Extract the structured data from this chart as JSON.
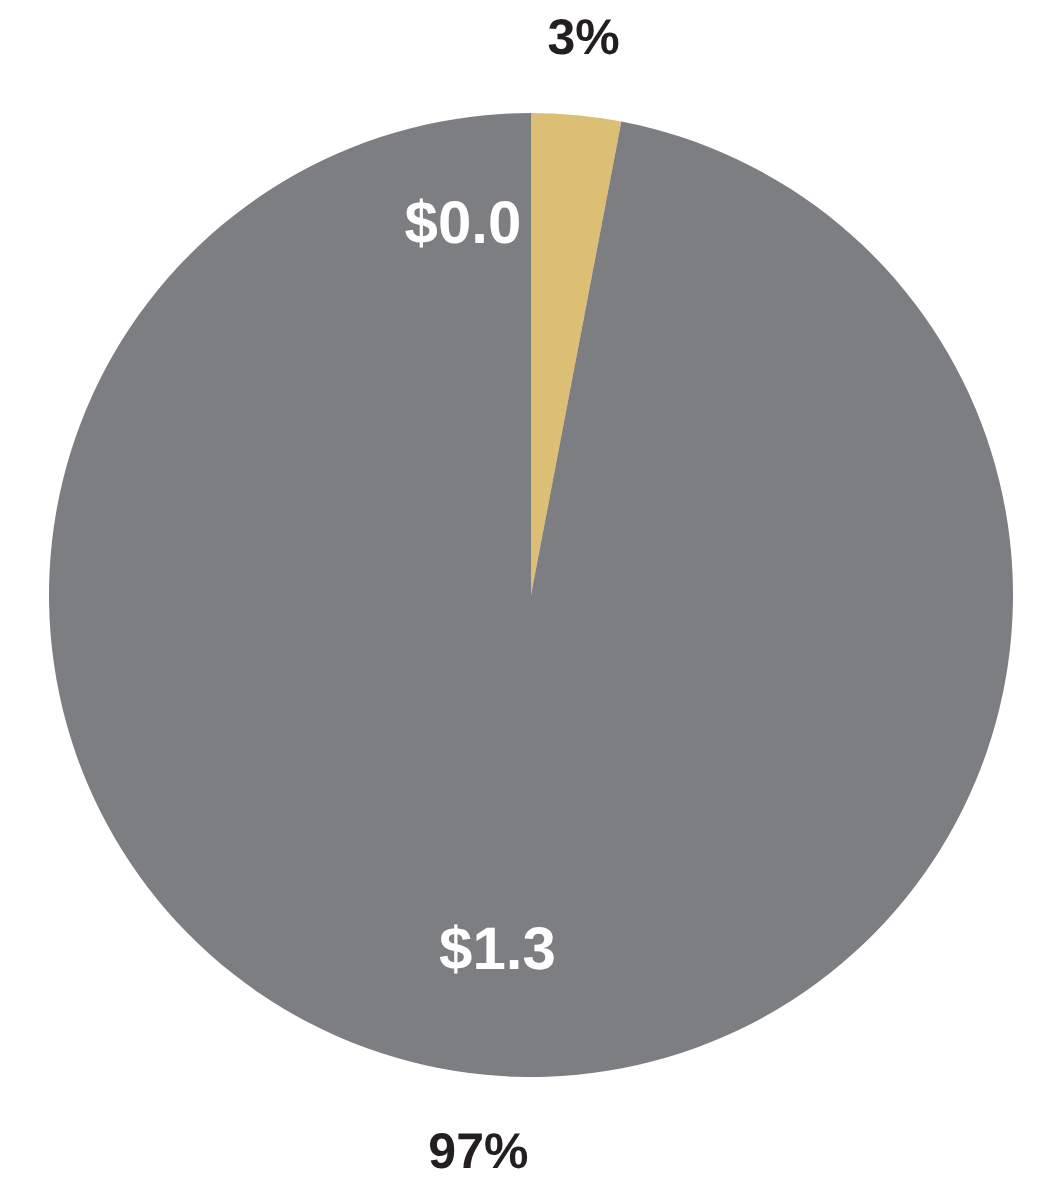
{
  "chart_data": {
    "type": "pie",
    "categories": [
      null,
      null
    ],
    "values": [
      3,
      97
    ],
    "colors": [
      "#dcbf74",
      "#7d7e82"
    ],
    "value_labels": [
      "3%",
      "97%"
    ],
    "annotations": [
      "$0.0",
      "$1.3"
    ]
  }
}
